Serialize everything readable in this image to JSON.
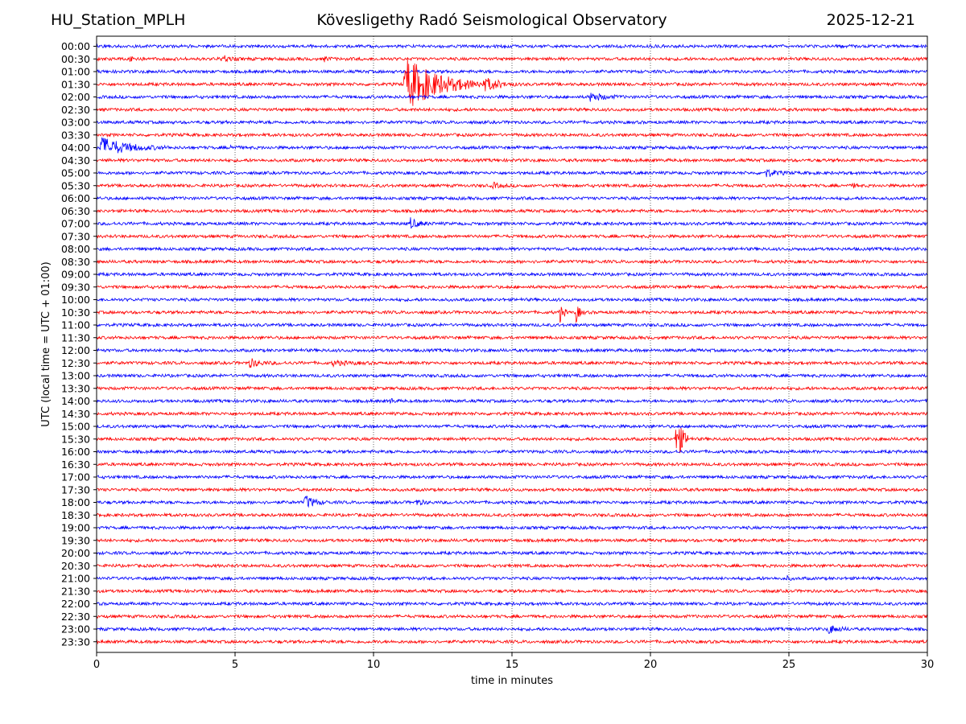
{
  "header": {
    "station": "HU_Station_MPLH",
    "observatory": "Kövesligethy Radó Seismological Observatory",
    "date": "2025-12-21"
  },
  "chart_data": {
    "type": "line",
    "chart_kind": "helicorder",
    "xlabel": "time in minutes",
    "ylabel": "UTC (local time = UTC + 01:00)",
    "xlim": [
      0,
      30
    ],
    "xticks": [
      0,
      5,
      10,
      15,
      20,
      25,
      30
    ],
    "xtick_labels": [
      "0",
      "5",
      "10",
      "15",
      "20",
      "25",
      "30"
    ],
    "vertical_gridlines": [
      5,
      10,
      15,
      20,
      25
    ],
    "colors": [
      "#0000ff",
      "#ff0000"
    ],
    "row_labels": [
      "00:00",
      "00:30",
      "01:00",
      "01:30",
      "02:00",
      "02:30",
      "03:00",
      "03:30",
      "04:00",
      "04:30",
      "05:00",
      "05:30",
      "06:00",
      "06:30",
      "07:00",
      "07:30",
      "08:00",
      "08:30",
      "09:00",
      "09:30",
      "10:00",
      "10:30",
      "11:00",
      "11:30",
      "12:00",
      "12:30",
      "13:00",
      "13:30",
      "14:00",
      "14:30",
      "15:00",
      "15:30",
      "16:00",
      "16:30",
      "17:00",
      "17:30",
      "18:00",
      "18:30",
      "19:00",
      "19:30",
      "20:00",
      "20:30",
      "21:00",
      "21:30",
      "22:00",
      "22:30",
      "23:00",
      "23:30"
    ],
    "events": [
      {
        "row": 1,
        "start": 1.2,
        "dur": 0.6,
        "amp": 5
      },
      {
        "row": 1,
        "start": 4.5,
        "dur": 0.7,
        "amp": 5
      },
      {
        "row": 1,
        "start": 8.2,
        "dur": 0.5,
        "amp": 3
      },
      {
        "row": 3,
        "start": 11.1,
        "dur": 3.5,
        "amp": 35
      },
      {
        "row": 3,
        "start": 14.0,
        "dur": 1.5,
        "amp": 6
      },
      {
        "row": 4,
        "start": 17.8,
        "dur": 1.2,
        "amp": 6
      },
      {
        "row": 8,
        "start": 0.1,
        "dur": 2.5,
        "amp": 14
      },
      {
        "row": 8,
        "start": 4.8,
        "dur": 0.5,
        "amp": 3
      },
      {
        "row": 10,
        "start": 24.1,
        "dur": 1.0,
        "amp": 6
      },
      {
        "row": 11,
        "start": 14.3,
        "dur": 0.6,
        "amp": 4
      },
      {
        "row": 11,
        "start": 27.3,
        "dur": 0.3,
        "amp": 3
      },
      {
        "row": 14,
        "start": 11.3,
        "dur": 0.9,
        "amp": 7
      },
      {
        "row": 21,
        "start": 16.7,
        "dur": 0.35,
        "amp": 16
      },
      {
        "row": 21,
        "start": 17.3,
        "dur": 0.35,
        "amp": 14
      },
      {
        "row": 25,
        "start": 5.5,
        "dur": 1.0,
        "amp": 6
      },
      {
        "row": 25,
        "start": 8.5,
        "dur": 1.5,
        "amp": 3
      },
      {
        "row": 28,
        "start": 10.6,
        "dur": 0.2,
        "amp": 6
      },
      {
        "row": 31,
        "start": 20.9,
        "dur": 0.6,
        "amp": 40
      },
      {
        "row": 36,
        "start": 7.5,
        "dur": 0.9,
        "amp": 10
      },
      {
        "row": 36,
        "start": 11.5,
        "dur": 0.7,
        "amp": 4
      },
      {
        "row": 42,
        "start": 24.9,
        "dur": 0.3,
        "amp": 3
      },
      {
        "row": 46,
        "start": 26.4,
        "dur": 0.9,
        "amp": 6
      }
    ]
  }
}
